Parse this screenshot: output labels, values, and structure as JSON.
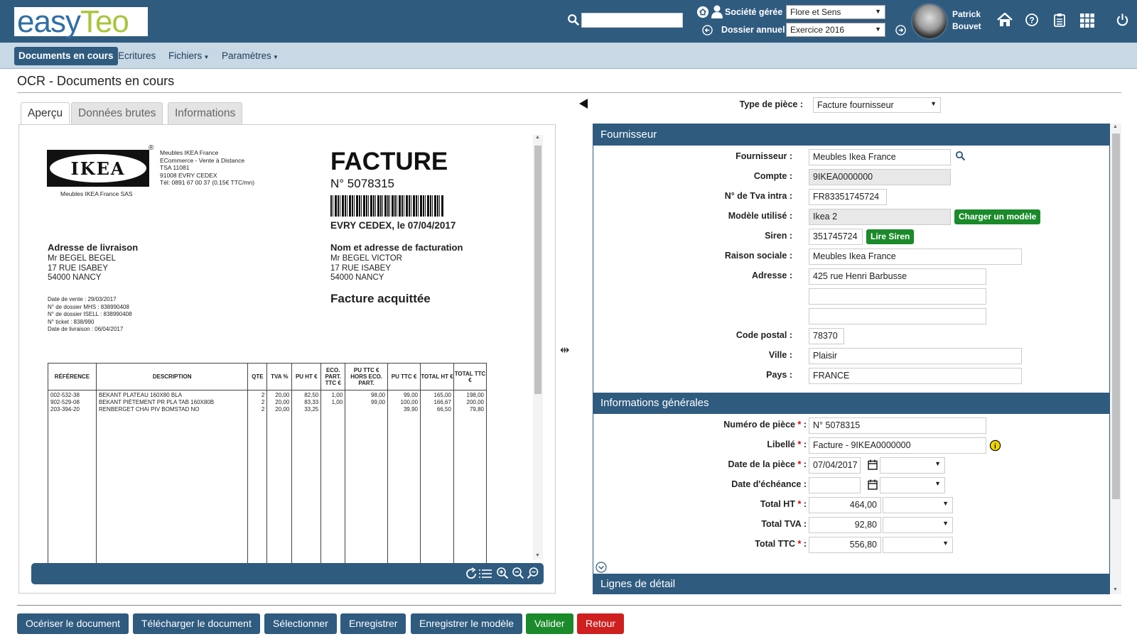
{
  "app": {
    "logo_text": "easyTeo",
    "brand_color": "#2f5b7f"
  },
  "header": {
    "societe_label": "Société gérée :",
    "societe_value": "Flore et Sens",
    "dossier_label": "Dossier annuel :",
    "dossier_value": "Exercice 2016",
    "user_first": "Patrick",
    "user_last": "Bouvet"
  },
  "nav": {
    "items": [
      "Documents en cours",
      "Ecritures",
      "Fichiers",
      "Paramètres"
    ]
  },
  "page": {
    "title": "OCR - Documents en cours"
  },
  "tabs": [
    "Aperçu",
    "Données brutes",
    "Informations"
  ],
  "invoice": {
    "brand": "IKEA",
    "brand_sub": "Meubles IKEA France SAS",
    "sender": [
      "Meubles IKEA France",
      "ECommerce - Vente à Distance",
      "TSA 11081",
      "91008 EVRY CEDEX",
      "Tél:  0891 67 00 37 (0.15€ TTC/mn)"
    ],
    "title": "FACTURE",
    "number": "N° 5078315",
    "city_date": "EVRY CEDEX, le 07/04/2017",
    "delivery_title": "Adresse de livraison",
    "delivery_lines": [
      "Mr BEGEL BEGEL",
      "17 RUE ISABEY",
      "54000 NANCY"
    ],
    "billing_title": "Nom et adresse de facturation",
    "billing_lines": [
      "Mr BEGEL VICTOR",
      "17 RUE ISABEY",
      "54000 NANCY"
    ],
    "paid": "Facture acquittée",
    "meta": [
      "Date de vente : 29/03/2017",
      "N° de dossier MHS : 838990408",
      "N° de dossier ISELL : 838990408",
      "N° ticket : 838/990",
      "Date de livraison : 06/04/2017"
    ],
    "columns": [
      "RÉFÉRENCE",
      "DESCRIPTION",
      "QTE",
      "TVA %",
      "PU HT €",
      "ECO. PART. TTC €",
      "PU TTC € HORS ECO. PART.",
      "PU TTC €",
      "TOTAL HT €",
      "TOTAL TTC €"
    ],
    "rows": [
      [
        "002-532-38",
        "BEKANT PLATEAU 160X80 BLA",
        "2",
        "20,00",
        "82,50",
        "1,00",
        "98,00",
        "99,00",
        "165,00",
        "198,00"
      ],
      [
        "902-529-08",
        "BEKANT PIÈTEMENT PR PLA TAB 160X80B",
        "2",
        "20,00",
        "83,33",
        "1,00",
        "99,00",
        "100,00",
        "166,67",
        "200,00"
      ],
      [
        "203-394-20",
        "RENBERGET CHAI PIV BOMSTAD NO",
        "2",
        "20,00",
        "33,25",
        "",
        "",
        "39,90",
        "66,50",
        "79,80"
      ]
    ]
  },
  "form": {
    "type_label": "Type de pièce :",
    "type_value": "Facture fournisseur",
    "section_fournisseur": "Fournisseur",
    "fournisseur_label": "Fournisseur :",
    "fournisseur_value": "Meubles Ikea France",
    "compte_label": "Compte :",
    "compte_value": "9IKEA0000000",
    "tva_label": "N° de Tva intra :",
    "tva_value": "FR83351745724",
    "modele_label": "Modèle utilisé :",
    "modele_value": "Ikea 2",
    "charger_btn": "Charger un modèle",
    "siren_label": "Siren :",
    "siren_value": "351745724",
    "lire_siren_btn": "Lire Siren",
    "raison_label": "Raison sociale :",
    "raison_value": "Meubles Ikea France",
    "adresse_label": "Adresse :",
    "adresse1": "425 rue Henri Barbusse",
    "adresse2": "",
    "adresse3": "",
    "cp_label": "Code postal :",
    "cp_value": "78370",
    "ville_label": "Ville :",
    "ville_value": "Plaisir",
    "pays_label": "Pays :",
    "pays_value": "FRANCE",
    "section_info": "Informations générales",
    "numero_label": "Numéro de pièce",
    "numero_value": "N° 5078315",
    "libelle_label": "Libellé",
    "libelle_value": "Facture - 9IKEA0000000",
    "date_piece_label": "Date de la pièce",
    "date_piece_value": "07/04/2017",
    "date_echeance_label": "Date d'échéance :",
    "date_echeance_value": "",
    "total_ht_label": "Total HT",
    "total_ht_value": "464,00",
    "total_tva_label": "Total TVA :",
    "total_tva_value": "92,80",
    "total_ttc_label": "Total TTC",
    "total_ttc_value": "556,80",
    "section_lignes": "Lignes de détail",
    "required_mark": "*",
    "colon": ":"
  },
  "footer": {
    "buttons": [
      "Océriser le document",
      "Télécharger le document",
      "Sélectionner",
      "Enregistrer",
      "Enregistrer le modèle",
      "Valider",
      "Retour"
    ]
  }
}
